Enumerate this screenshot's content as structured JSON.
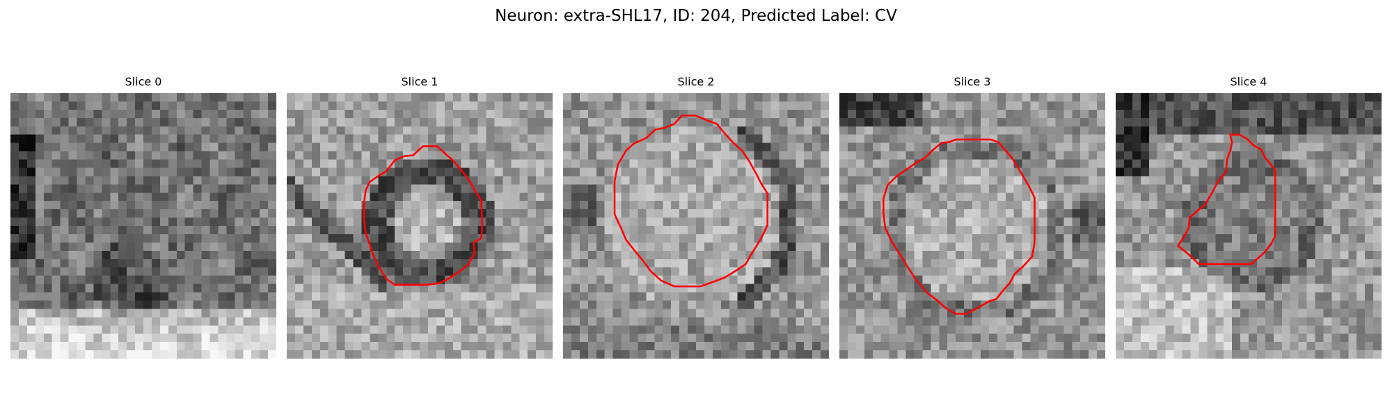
{
  "figure": {
    "title": "Neuron: extra-SHL17, ID: 204, Predicted Label: CV"
  },
  "colors": {
    "contour": "#ff0000",
    "background": "#ffffff",
    "colormap": "gray"
  },
  "slices": [
    {
      "title": "Slice 0",
      "has_contour": false
    },
    {
      "title": "Slice 1",
      "has_contour": true
    },
    {
      "title": "Slice 2",
      "has_contour": true
    },
    {
      "title": "Slice 3",
      "has_contour": true
    },
    {
      "title": "Slice 4",
      "has_contour": true
    }
  ]
}
